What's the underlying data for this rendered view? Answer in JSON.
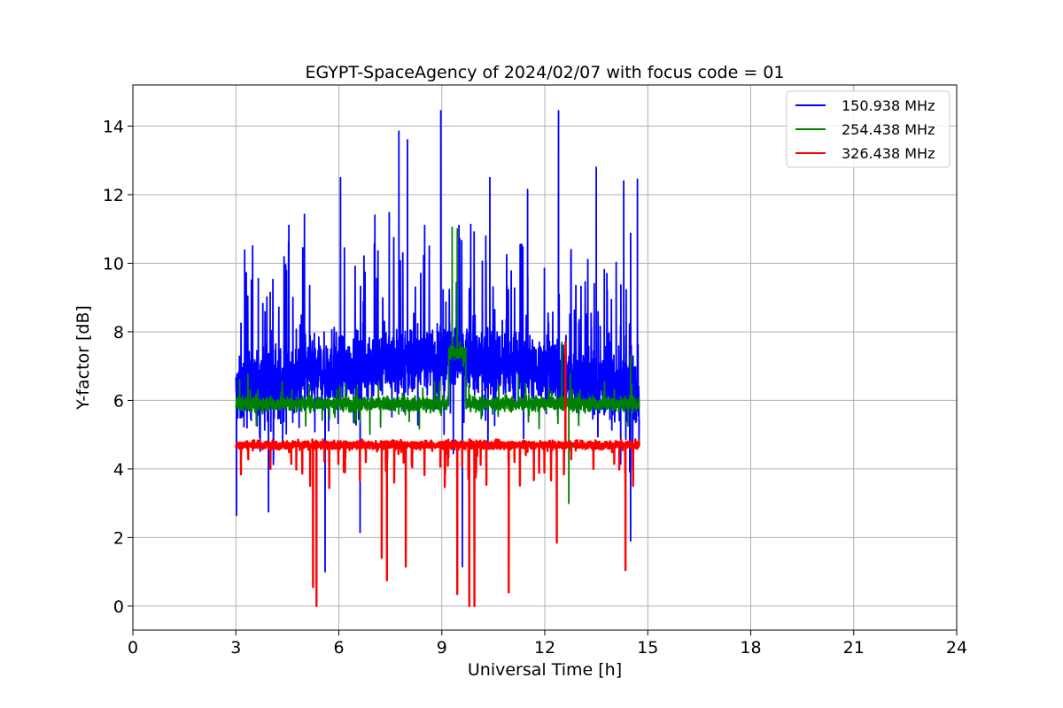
{
  "chart_data": {
    "type": "line",
    "title": "EGYPT-SpaceAgency of 2024/02/07 with focus code = 01",
    "xlabel": "Universal Time [h]",
    "ylabel": "Y-factor [dB]",
    "xlim": [
      0,
      24
    ],
    "ylim": [
      -0.7,
      15.2
    ],
    "xticks": [
      0,
      3,
      6,
      9,
      12,
      15,
      18,
      21,
      24
    ],
    "yticks": [
      0,
      2,
      4,
      6,
      8,
      10,
      12,
      14
    ],
    "grid": true,
    "legend_position": "top-right",
    "series": [
      {
        "name": "150.938 MHz",
        "color": "#0000ff",
        "time_range": [
          3.0,
          14.75
        ],
        "baseline": 6.2,
        "spread": 1.6,
        "peaks": [
          {
            "x": 3.02,
            "y": 2.65
          },
          {
            "x": 3.15,
            "y": 8.25
          },
          {
            "x": 3.95,
            "y": 2.75
          },
          {
            "x": 4.0,
            "y": 9.15
          },
          {
            "x": 4.95,
            "y": 10.45
          },
          {
            "x": 5.15,
            "y": 9.35
          },
          {
            "x": 5.6,
            "y": 1.0
          },
          {
            "x": 6.05,
            "y": 12.5
          },
          {
            "x": 6.62,
            "y": 2.15
          },
          {
            "x": 7.05,
            "y": 11.4
          },
          {
            "x": 7.75,
            "y": 13.85
          },
          {
            "x": 8.0,
            "y": 13.6
          },
          {
            "x": 8.5,
            "y": 11.1
          },
          {
            "x": 8.97,
            "y": 14.45
          },
          {
            "x": 9.5,
            "y": 11.1
          },
          {
            "x": 9.6,
            "y": 1.15
          },
          {
            "x": 10.4,
            "y": 12.5
          },
          {
            "x": 11.5,
            "y": 12.15
          },
          {
            "x": 12.4,
            "y": 14.45
          },
          {
            "x": 13.5,
            "y": 12.8
          },
          {
            "x": 14.3,
            "y": 12.4
          },
          {
            "x": 14.5,
            "y": 1.9
          },
          {
            "x": 14.7,
            "y": 12.45
          }
        ]
      },
      {
        "name": "254.438 MHz",
        "color": "#008000",
        "time_range": [
          3.0,
          14.75
        ],
        "baseline": 5.9,
        "spread": 0.35,
        "peaks": [
          {
            "x": 9.3,
            "y": 11.05
          },
          {
            "x": 9.45,
            "y": 11.0
          },
          {
            "x": 12.5,
            "y": 7.7
          },
          {
            "x": 14.5,
            "y": 7.3
          },
          {
            "x": 12.7,
            "y": 3.0
          }
        ]
      },
      {
        "name": "326.438 MHz",
        "color": "#ff0000",
        "time_range": [
          3.0,
          14.75
        ],
        "baseline": 4.7,
        "spread": 0.2,
        "peaks": [
          {
            "x": 5.25,
            "y": 0.55
          },
          {
            "x": 5.35,
            "y": 0.0
          },
          {
            "x": 7.25,
            "y": 1.4
          },
          {
            "x": 7.4,
            "y": 0.75
          },
          {
            "x": 7.95,
            "y": 1.15
          },
          {
            "x": 9.45,
            "y": 0.35
          },
          {
            "x": 9.8,
            "y": 0.0
          },
          {
            "x": 9.95,
            "y": 0.0
          },
          {
            "x": 10.95,
            "y": 0.4
          },
          {
            "x": 12.35,
            "y": 1.85
          },
          {
            "x": 12.6,
            "y": 7.7
          },
          {
            "x": 14.35,
            "y": 1.05
          }
        ]
      }
    ]
  }
}
